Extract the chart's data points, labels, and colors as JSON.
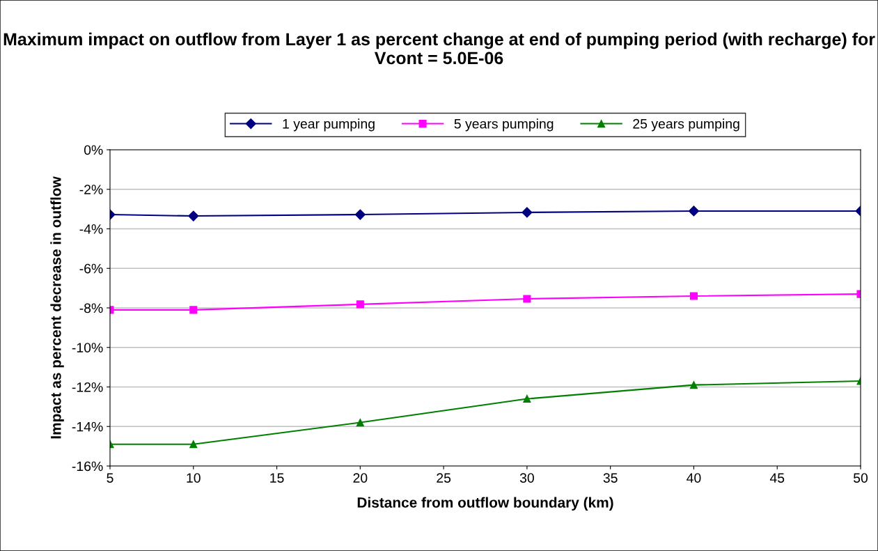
{
  "chart_data": {
    "type": "line",
    "title": "Maximum impact on outflow from Layer 1 as percent change at end of pumping period (with recharge) for Vcont = 5.0E-06",
    "xlabel": "Distance from outflow boundary (km)",
    "ylabel": "Impact as percent decrease in outflow",
    "x": [
      5,
      10,
      20,
      30,
      40,
      50
    ],
    "series": [
      {
        "name": "1 year pumping",
        "color": "#000080",
        "marker": "diamond",
        "values": [
          -3.28,
          -3.35,
          -3.28,
          -3.17,
          -3.1,
          -3.1
        ]
      },
      {
        "name": "5 years pumping",
        "color": "#ff00ff",
        "marker": "square",
        "values": [
          -8.1,
          -8.1,
          -7.82,
          -7.54,
          -7.4,
          -7.3
        ]
      },
      {
        "name": "25 years pumping",
        "color": "#008000",
        "marker": "triangle",
        "values": [
          -14.9,
          -14.9,
          -13.8,
          -12.6,
          -11.9,
          -11.7
        ]
      }
    ],
    "xlim": [
      5,
      50
    ],
    "xticks": [
      5,
      10,
      15,
      20,
      25,
      30,
      35,
      40,
      45,
      50
    ],
    "ylim": [
      -16,
      0
    ],
    "yticks": [
      {
        "value": -16,
        "label": "-16%"
      },
      {
        "value": -14,
        "label": "-14%"
      },
      {
        "value": -12,
        "label": "-12%"
      },
      {
        "value": -10,
        "label": "-10%"
      },
      {
        "value": -8,
        "label": "-8%"
      },
      {
        "value": -6,
        "label": "-6%"
      },
      {
        "value": -4,
        "label": "-4%"
      },
      {
        "value": -2,
        "label": "-2%"
      },
      {
        "value": 0,
        "label": "0%"
      }
    ],
    "grid": "y",
    "legend": "top",
    "line_style": "solid"
  }
}
